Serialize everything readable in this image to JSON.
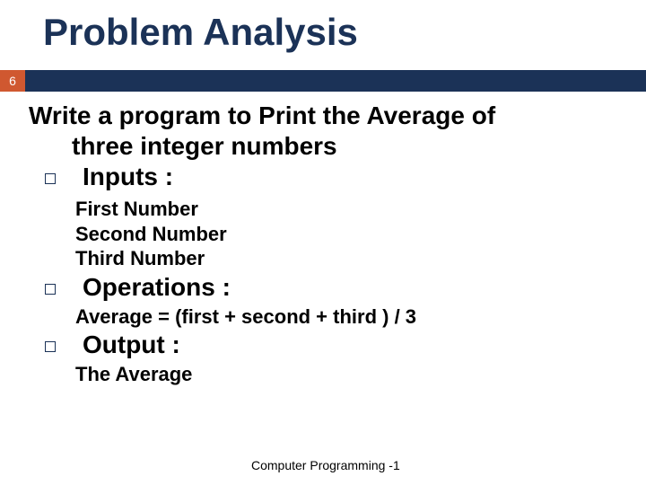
{
  "colors": {
    "title_color": "#1b3257",
    "accent_color": "#d05830",
    "bar_color": "#1b3257",
    "text_color": "#000000",
    "background": "#ffffff"
  },
  "slide_number": "6",
  "title": "Problem Analysis",
  "prompt_line1": "Write a program to Print the Average of",
  "prompt_line2": "three integer numbers",
  "sections": {
    "inputs": {
      "label": "Inputs :",
      "items": [
        "First Number",
        "Second Number",
        "Third Number"
      ]
    },
    "operations": {
      "label": "Operations :",
      "detail": "Average =  (first + second + third ) / 3"
    },
    "output": {
      "label": "Output :",
      "detail": "The Average"
    }
  },
  "footer": "Computer Programming -1",
  "typography": {
    "title_fontsize": 42,
    "body_fontsize": 28,
    "sublist_fontsize": 22,
    "footer_fontsize": 14,
    "weight": "bold"
  }
}
